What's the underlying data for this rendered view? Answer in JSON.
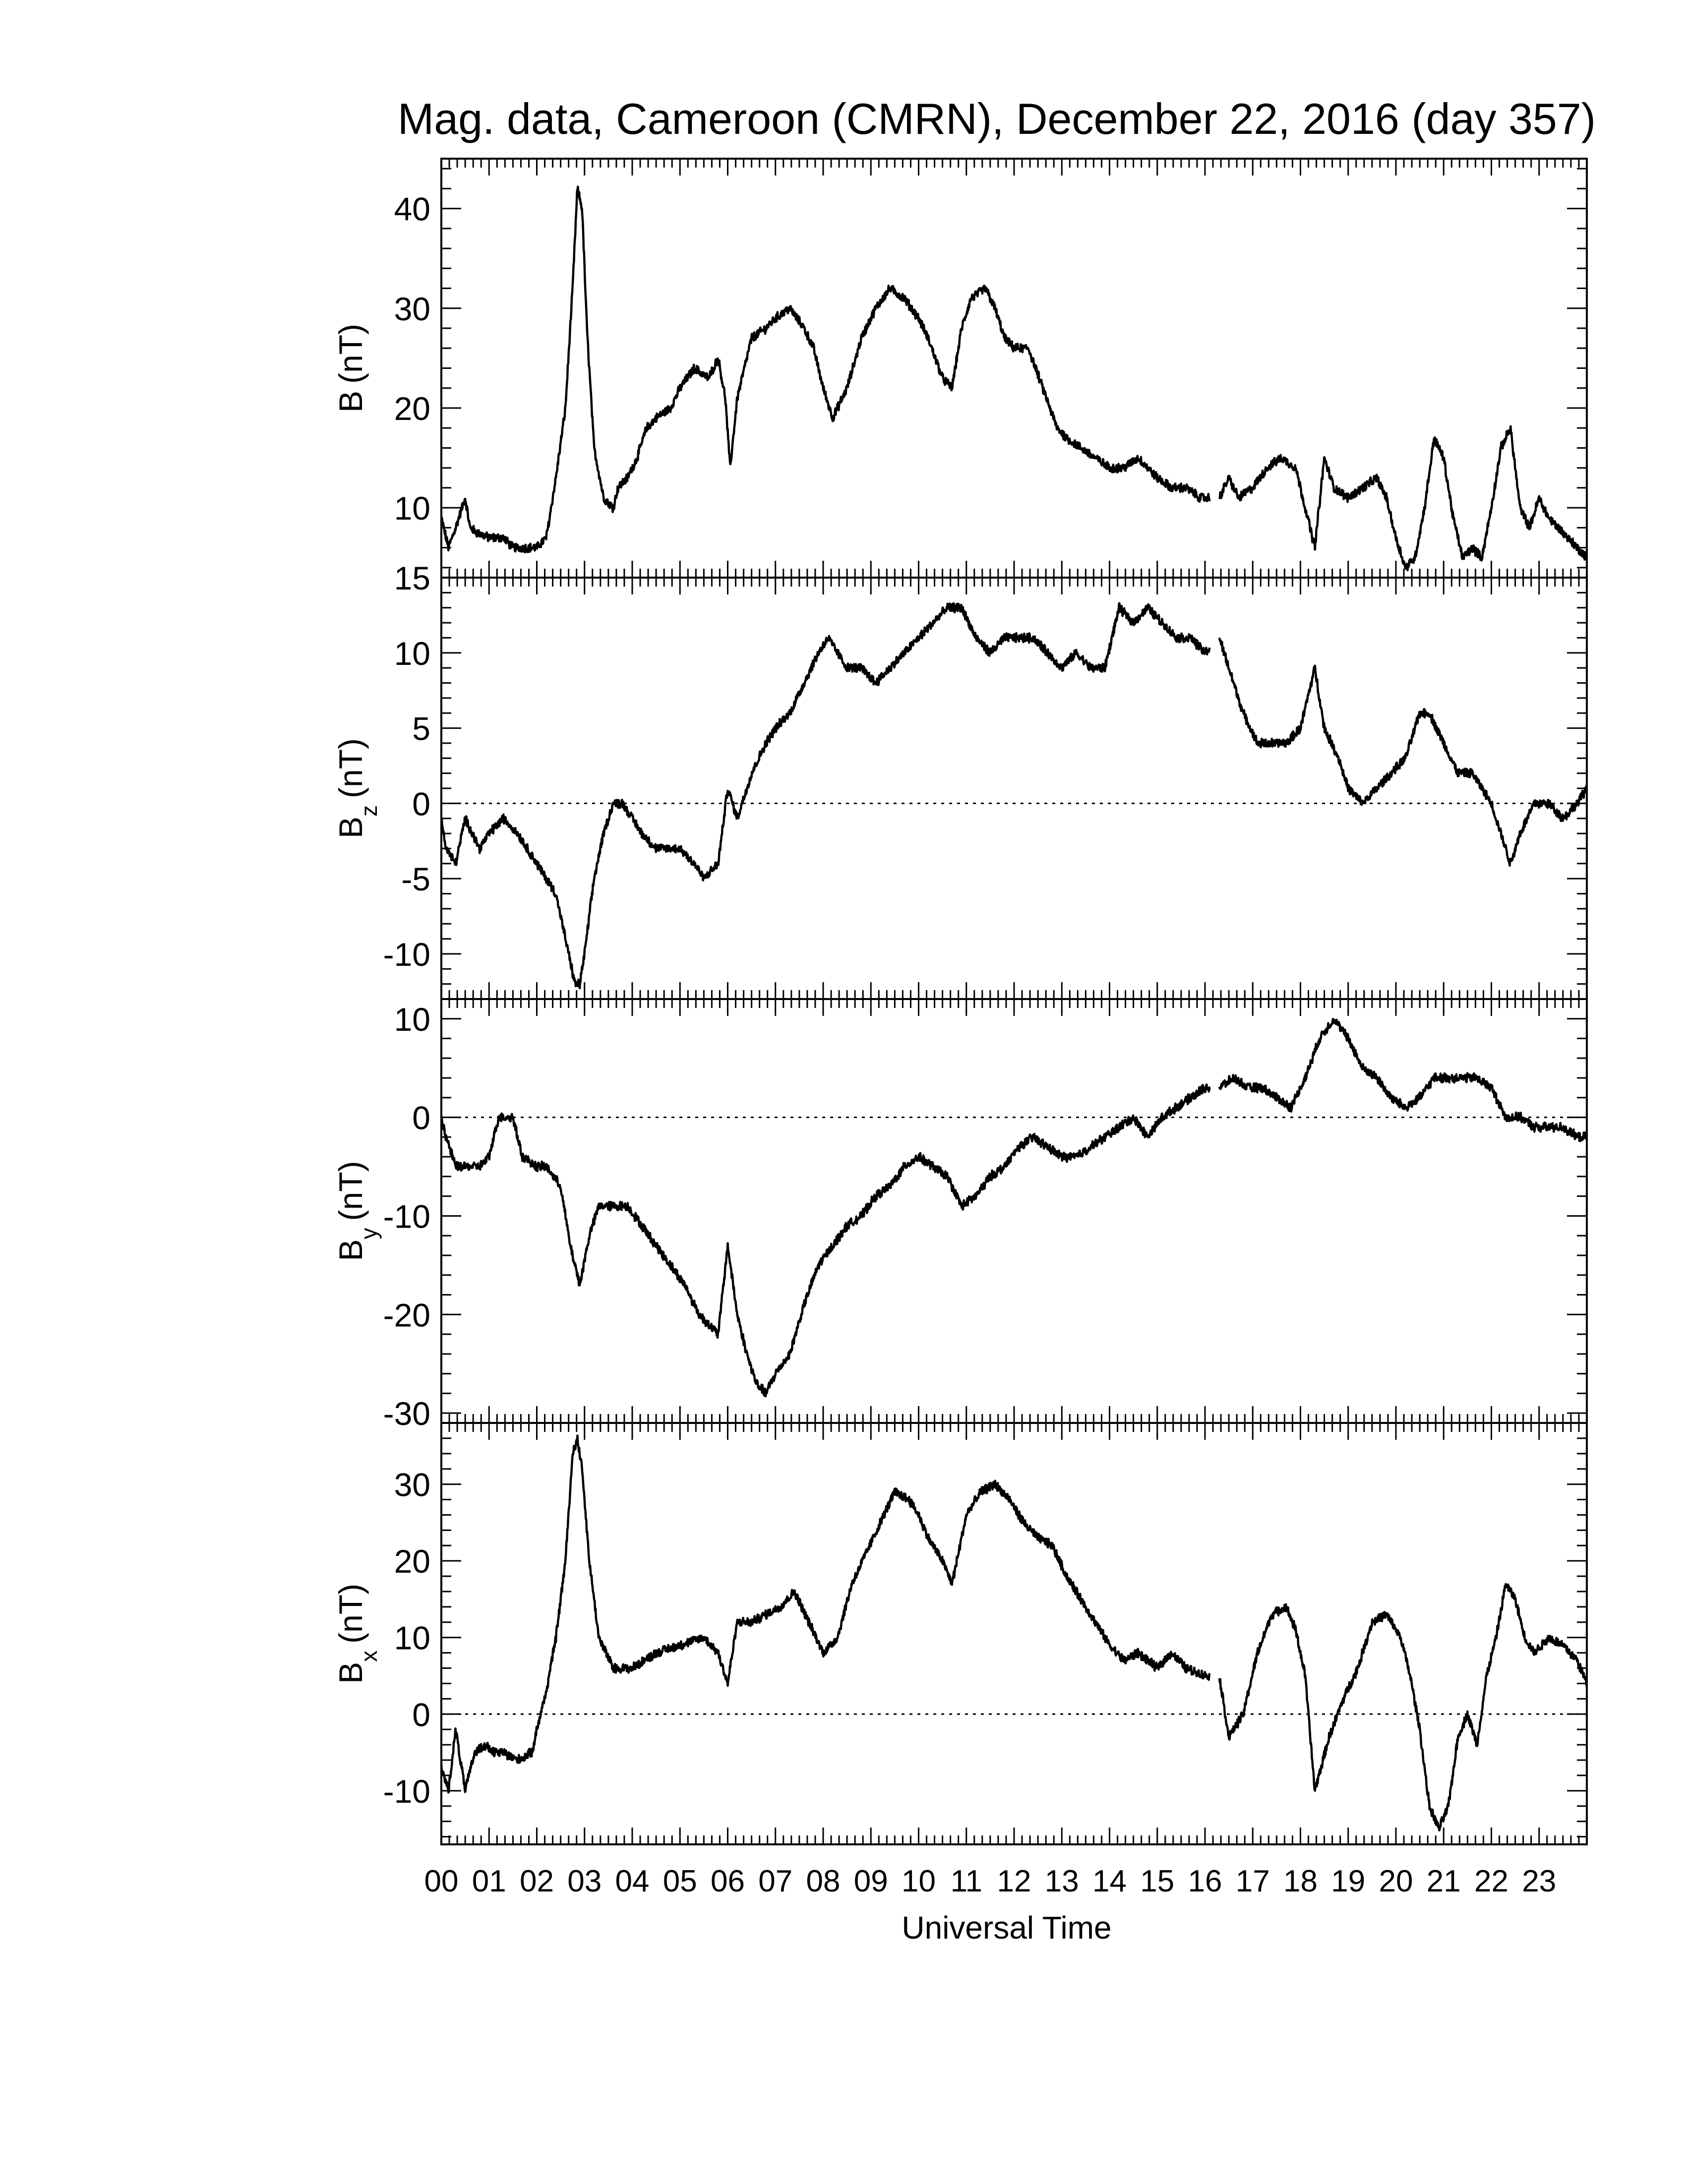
{
  "chart_data": {
    "type": "line",
    "title": "Mag. data, Cameroon (CMRN), December 22, 2016 (day 357)",
    "xlabel": "Universal Time",
    "x_tick_labels": [
      "00",
      "01",
      "02",
      "03",
      "04",
      "05",
      "06",
      "07",
      "08",
      "09",
      "10",
      "11",
      "12",
      "13",
      "14",
      "15",
      "16",
      "17",
      "18",
      "19",
      "20",
      "21",
      "22",
      "23"
    ],
    "xlim": [
      0,
      24
    ],
    "line_color": "#000000",
    "gap": [
      16.1,
      16.3
    ],
    "panels": [
      {
        "id": "B",
        "ylabel_main": "B",
        "ylabel_sub": "",
        "ylabel_unit": "(nT)",
        "ylim": [
          3,
          45
        ],
        "yticks": [
          10,
          20,
          30,
          40
        ],
        "zero_line": false,
        "x": [
          0,
          0.15,
          0.3,
          0.5,
          0.6,
          0.75,
          1.0,
          1.3,
          1.5,
          1.8,
          2.0,
          2.2,
          2.4,
          2.6,
          2.75,
          2.85,
          2.95,
          3.05,
          3.2,
          3.4,
          3.6,
          3.7,
          3.9,
          4.1,
          4.3,
          4.5,
          4.8,
          5.0,
          5.3,
          5.6,
          5.8,
          5.95,
          6.05,
          6.2,
          6.5,
          6.8,
          7.0,
          7.3,
          7.6,
          7.8,
          8.0,
          8.2,
          8.5,
          8.8,
          9.1,
          9.4,
          9.7,
          10.0,
          10.2,
          10.5,
          10.7,
          10.9,
          11.1,
          11.4,
          11.6,
          11.8,
          12.0,
          12.3,
          12.6,
          12.9,
          13.1,
          13.4,
          13.7,
          14.0,
          14.3,
          14.6,
          15.0,
          15.3,
          15.6,
          15.9,
          16.1,
          16.3,
          16.5,
          16.7,
          17.0,
          17.3,
          17.6,
          17.9,
          18.1,
          18.3,
          18.5,
          18.7,
          19.0,
          19.3,
          19.6,
          19.8,
          20.0,
          20.2,
          20.4,
          20.6,
          20.8,
          21.0,
          21.2,
          21.4,
          21.6,
          21.8,
          22.0,
          22.2,
          22.4,
          22.6,
          22.8,
          23.0,
          23.2,
          23.4,
          23.6,
          23.8,
          24.0
        ],
        "y": [
          9,
          6,
          8,
          11,
          8,
          7.5,
          7,
          7,
          6,
          6,
          6,
          7,
          13,
          20,
          32,
          42,
          40,
          28,
          16,
          11,
          10,
          12,
          13,
          15,
          18,
          19,
          20,
          22,
          24,
          23,
          25,
          21,
          14,
          21,
          27,
          28,
          29,
          30,
          28,
          26,
          22,
          19,
          22,
          27,
          30,
          32,
          31,
          29,
          27,
          23,
          22,
          28,
          31,
          32,
          30,
          27,
          26,
          26,
          22,
          18,
          17,
          16,
          15,
          14,
          14,
          15,
          13,
          12,
          12,
          11,
          11,
          11,
          13,
          11,
          12,
          14,
          15,
          14,
          10,
          6,
          15,
          12,
          11,
          12,
          13,
          11,
          7,
          4,
          5,
          10,
          17,
          15,
          9,
          5,
          6,
          5,
          10,
          16,
          18,
          10,
          8,
          11,
          9,
          8,
          7,
          6,
          5
        ],
        "y_step": 5
      },
      {
        "id": "Bz",
        "ylabel_main": "B",
        "ylabel_sub": "z",
        "ylabel_unit": "(nT)",
        "ylim": [
          -13,
          15
        ],
        "yticks": [
          -10,
          -5,
          0,
          5,
          10,
          15
        ],
        "zero_line": true,
        "x": [
          0,
          0.1,
          0.3,
          0.5,
          0.8,
          1.0,
          1.3,
          1.6,
          1.8,
          2.0,
          2.2,
          2.4,
          2.6,
          2.8,
          2.9,
          3.0,
          3.2,
          3.4,
          3.6,
          3.8,
          4.0,
          4.2,
          4.5,
          4.8,
          5.0,
          5.3,
          5.5,
          5.8,
          6.0,
          6.2,
          6.5,
          6.8,
          7.0,
          7.3,
          7.6,
          7.9,
          8.1,
          8.3,
          8.5,
          8.8,
          9.1,
          9.4,
          9.7,
          10.0,
          10.3,
          10.6,
          10.9,
          11.2,
          11.5,
          11.8,
          12.1,
          12.4,
          12.7,
          13.0,
          13.3,
          13.6,
          13.9,
          14.2,
          14.5,
          14.8,
          15.1,
          15.4,
          15.7,
          16.0,
          16.3,
          16.5,
          16.8,
          17.1,
          17.4,
          17.7,
          18.0,
          18.3,
          18.5,
          18.8,
          19.0,
          19.3,
          19.6,
          19.9,
          20.2,
          20.5,
          20.7,
          21.0,
          21.3,
          21.6,
          21.8,
          22.0,
          22.2,
          22.4,
          22.6,
          22.9,
          23.2,
          23.5,
          23.8,
          24.0
        ],
        "y": [
          -1,
          -3,
          -4,
          -1,
          -3,
          -2,
          -1,
          -2,
          -3,
          -4,
          -5,
          -6,
          -9,
          -12,
          -12,
          -10,
          -5,
          -2,
          0,
          0,
          -1,
          -2,
          -3,
          -3,
          -3,
          -4,
          -5,
          -4,
          1,
          -1,
          2,
          4,
          5,
          6,
          8,
          10,
          11,
          10,
          9,
          9,
          8,
          9,
          10,
          11,
          12,
          13,
          13,
          11,
          10,
          11,
          11,
          11,
          10,
          9,
          10,
          9,
          9,
          13,
          12,
          13,
          12,
          11,
          11,
          10,
          11,
          9,
          6,
          4,
          4,
          4,
          5,
          9,
          5,
          3,
          1,
          0,
          1,
          2,
          3,
          6,
          6,
          4,
          2,
          2,
          1,
          0,
          -2,
          -4,
          -2,
          0,
          0,
          -1,
          0,
          1
        ],
        "y_step": 3
      },
      {
        "id": "By",
        "ylabel_main": "B",
        "ylabel_sub": "y",
        "ylabel_unit": "(nT)",
        "ylim": [
          -31,
          12
        ],
        "yticks": [
          -30,
          -20,
          -10,
          0,
          10
        ],
        "zero_line": true,
        "x": [
          0,
          0.1,
          0.3,
          0.5,
          0.8,
          1.0,
          1.2,
          1.5,
          1.7,
          2.0,
          2.2,
          2.5,
          2.7,
          2.9,
          3.1,
          3.3,
          3.6,
          3.9,
          4.2,
          4.5,
          4.8,
          5.1,
          5.4,
          5.6,
          5.8,
          6.0,
          6.2,
          6.4,
          6.6,
          6.8,
          7.0,
          7.3,
          7.6,
          7.9,
          8.2,
          8.5,
          8.8,
          9.1,
          9.4,
          9.7,
          10.0,
          10.3,
          10.6,
          10.9,
          11.2,
          11.5,
          11.8,
          12.1,
          12.4,
          12.7,
          13.0,
          13.3,
          13.6,
          13.9,
          14.2,
          14.5,
          14.8,
          15.1,
          15.4,
          15.7,
          16.0,
          16.3,
          16.6,
          16.9,
          17.2,
          17.5,
          17.8,
          18.1,
          18.4,
          18.7,
          19.0,
          19.3,
          19.6,
          19.9,
          20.2,
          20.5,
          20.8,
          21.1,
          21.4,
          21.7,
          22.0,
          22.3,
          22.6,
          22.9,
          23.2,
          23.5,
          23.8,
          24.0
        ],
        "y": [
          0,
          -2,
          -5,
          -5,
          -5,
          -4,
          0,
          0,
          -4,
          -5,
          -5,
          -7,
          -13,
          -17,
          -12,
          -9,
          -9,
          -9,
          -11,
          -13,
          -15,
          -17,
          -20,
          -21,
          -22,
          -13,
          -20,
          -24,
          -27,
          -28,
          -26,
          -24,
          -19,
          -15,
          -13,
          -11,
          -10,
          -8,
          -7,
          -5,
          -4,
          -5,
          -6,
          -9,
          -8,
          -6,
          -5,
          -3,
          -2,
          -3,
          -4,
          -4,
          -3,
          -2,
          -1,
          0,
          -2,
          0,
          1,
          2,
          3,
          3,
          4,
          3,
          3,
          2,
          1,
          4,
          8,
          10,
          8,
          5,
          4,
          2,
          1,
          2,
          4,
          4,
          4,
          4,
          3,
          0,
          0,
          -1,
          -1,
          -1,
          -2,
          -2
        ],
        "y_step": 5
      },
      {
        "id": "Bx",
        "ylabel_main": "B",
        "ylabel_sub": "x",
        "ylabel_unit": "(nT)",
        "ylim": [
          -17,
          38
        ],
        "yticks": [
          -10,
          0,
          10,
          20,
          30
        ],
        "zero_line": true,
        "x": [
          0,
          0.15,
          0.3,
          0.5,
          0.7,
          0.9,
          1.1,
          1.3,
          1.6,
          1.9,
          2.0,
          2.2,
          2.4,
          2.6,
          2.75,
          2.85,
          2.95,
          3.1,
          3.3,
          3.6,
          4.0,
          4.5,
          5.0,
          5.5,
          5.8,
          6.0,
          6.2,
          6.5,
          6.8,
          7.1,
          7.4,
          7.7,
          8.0,
          8.3,
          8.6,
          8.9,
          9.2,
          9.5,
          9.8,
          10.0,
          10.2,
          10.5,
          10.7,
          11.0,
          11.3,
          11.6,
          11.9,
          12.2,
          12.5,
          12.8,
          13.1,
          13.4,
          13.7,
          14.0,
          14.3,
          14.6,
          15.0,
          15.3,
          15.6,
          16.0,
          16.3,
          16.5,
          16.8,
          17.1,
          17.4,
          17.7,
          17.9,
          18.1,
          18.3,
          18.6,
          18.9,
          19.2,
          19.5,
          19.8,
          20.1,
          20.3,
          20.5,
          20.7,
          20.9,
          21.1,
          21.3,
          21.5,
          21.7,
          21.9,
          22.1,
          22.3,
          22.5,
          22.7,
          22.9,
          23.2,
          23.5,
          23.8,
          24.0
        ],
        "y": [
          -7,
          -10,
          -2,
          -10,
          -5,
          -4,
          -5,
          -5,
          -6,
          -5,
          -2,
          3,
          10,
          20,
          34,
          36,
          32,
          20,
          10,
          6,
          6,
          8,
          9,
          10,
          8,
          4,
          12,
          12,
          13,
          14,
          16,
          12,
          8,
          10,
          17,
          21,
          25,
          29,
          28,
          26,
          23,
          20,
          17,
          26,
          29,
          30,
          28,
          25,
          23,
          22,
          18,
          15,
          12,
          9,
          7,
          8,
          6,
          8,
          6,
          5,
          5,
          -3,
          0,
          8,
          13,
          14,
          11,
          5,
          -10,
          -3,
          2,
          6,
          12,
          13,
          10,
          5,
          -2,
          -12,
          -15,
          -12,
          -3,
          0,
          -4,
          5,
          10,
          17,
          15,
          10,
          8,
          10,
          9,
          7,
          4
        ],
        "y_step": 6
      }
    ]
  }
}
